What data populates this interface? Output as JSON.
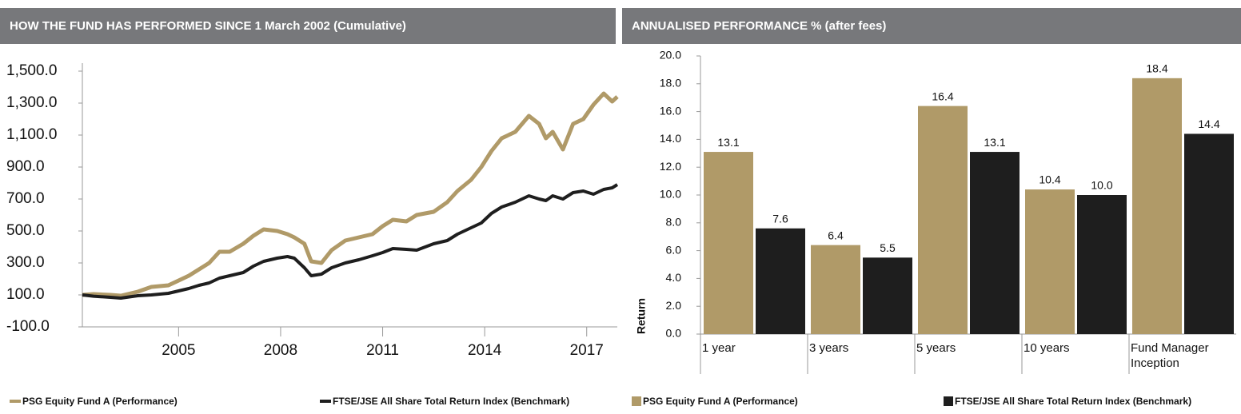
{
  "chart_data": [
    {
      "type": "line",
      "title": "HOW THE FUND HAS PERFORMED SINCE 1 March 2002 (Cumulative)",
      "x": [
        2002.17,
        2002.5,
        2003,
        2003.3,
        2003.8,
        2004.2,
        2004.7,
        2005,
        2005.3,
        2005.6,
        2005.9,
        2006.2,
        2006.5,
        2006.9,
        2007.2,
        2007.5,
        2007.9,
        2008.2,
        2008.4,
        2008.7,
        2008.9,
        2009.2,
        2009.5,
        2009.9,
        2010.3,
        2010.7,
        2011,
        2011.3,
        2011.7,
        2012,
        2012.5,
        2012.9,
        2013.2,
        2013.6,
        2013.9,
        2014.2,
        2014.5,
        2014.9,
        2015.3,
        2015.6,
        2015.8,
        2016,
        2016.3,
        2016.6,
        2016.9,
        2017.2,
        2017.5,
        2017.75,
        2017.9
      ],
      "series": [
        {
          "name": "PSG Equity Fund  A (Performance)",
          "color": "#b09a68",
          "values": [
            100,
            105,
            100,
            95,
            120,
            150,
            160,
            190,
            220,
            260,
            300,
            370,
            370,
            420,
            470,
            510,
            500,
            480,
            460,
            420,
            310,
            300,
            380,
            440,
            460,
            480,
            530,
            570,
            560,
            600,
            620,
            680,
            750,
            820,
            900,
            1000,
            1080,
            1120,
            1220,
            1170,
            1080,
            1120,
            1010,
            1170,
            1200,
            1290,
            1360,
            1310,
            1340
          ]
        },
        {
          "name": "FTSE/JSE All Share Total Return Index (Benchmark)",
          "color": "#1e1e1e",
          "values": [
            100,
            92,
            85,
            80,
            95,
            100,
            110,
            125,
            140,
            160,
            175,
            205,
            220,
            240,
            280,
            310,
            330,
            340,
            330,
            270,
            220,
            230,
            270,
            300,
            320,
            345,
            365,
            390,
            385,
            380,
            420,
            440,
            480,
            520,
            550,
            610,
            650,
            680,
            720,
            700,
            690,
            720,
            700,
            740,
            750,
            730,
            760,
            770,
            790
          ]
        }
      ],
      "xlim": [
        2002.17,
        2017.9
      ],
      "xticks": [
        2005,
        2008,
        2011,
        2014,
        2017
      ],
      "ylim": [
        -100,
        1500
      ],
      "yticks": [
        {
          "value": -100,
          "label": "-100.0"
        },
        {
          "value": 100,
          "label": "100.0"
        },
        {
          "value": 300,
          "label": "300.0"
        },
        {
          "value": 500,
          "label": "500.0"
        },
        {
          "value": 700,
          "label": "700.0"
        },
        {
          "value": 900,
          "label": "900.0"
        },
        {
          "value": 1100,
          "label": "1,100.0"
        },
        {
          "value": 1300,
          "label": "1,300.0"
        },
        {
          "value": 1500,
          "label": "1,500.0"
        }
      ],
      "grid": false
    },
    {
      "type": "bar",
      "title": "ANNUALISED PERFORMANCE % (after fees)",
      "y_label": "Return",
      "categories": [
        "1 year",
        "3 years",
        "5 years",
        "10 years",
        "Fund Manager Inception"
      ],
      "series": [
        {
          "name": "PSG Equity Fund A (Performance)",
          "color": "#b09a68",
          "values": [
            13.1,
            6.4,
            16.4,
            10.4,
            18.4
          ],
          "value_labels": [
            "13.1",
            "6.4",
            "16.4",
            "10.4",
            "18.4"
          ]
        },
        {
          "name": "FTSE/JSE All Share Total Return Index (Benchmark)",
          "color": "#1e1e1e",
          "values": [
            7.6,
            5.5,
            13.1,
            10.0,
            14.4
          ],
          "value_labels": [
            "7.6",
            "5.5",
            "13.1",
            "10.0",
            "14.4"
          ]
        }
      ],
      "ylim": [
        0,
        20
      ],
      "yticks": [
        {
          "value": 0,
          "label": "0.0"
        },
        {
          "value": 2,
          "label": "2.0"
        },
        {
          "value": 4,
          "label": "4.0"
        },
        {
          "value": 6,
          "label": "6.0"
        },
        {
          "value": 8,
          "label": "8.0"
        },
        {
          "value": 10,
          "label": "10.0"
        },
        {
          "value": 12,
          "label": "12.0"
        },
        {
          "value": 14,
          "label": "14.0"
        },
        {
          "value": 16,
          "label": "16.0"
        },
        {
          "value": 18,
          "label": "18.0"
        },
        {
          "value": 20,
          "label": "20.0"
        }
      ],
      "grid": false
    }
  ]
}
